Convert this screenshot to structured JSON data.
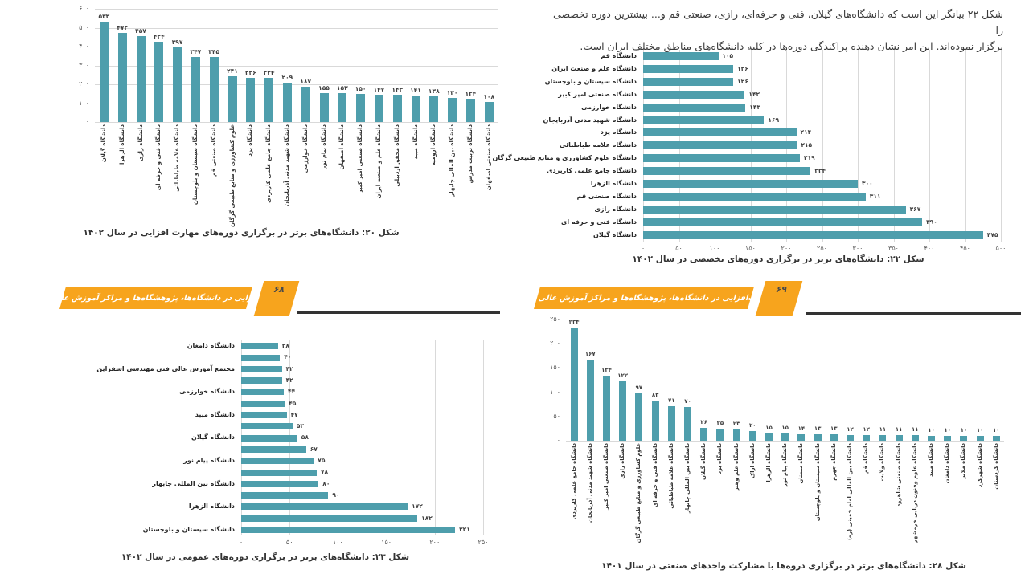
{
  "colors": {
    "bar": "#4E9EAC",
    "banner": "#F7A41D",
    "banner_shadow": "#333333",
    "gridline": "#d9d9d9"
  },
  "page_left": {
    "page_number": "۶۸",
    "banner_title": "مهارت‌افزایی در دانشگاه‌ها، پژوهشگاه‌ها و مراکز آموزش عالی کشور"
  },
  "page_right": {
    "page_number": "۶۹",
    "banner_title": "مهارت‌افزایی در دانشگاه‌ها، پژوهشگاه‌ها و مراکز آموزش عالی کشور",
    "paragraph_lines": [
      "شکل ۲۲ بیانگر این است که دانشگاه‌های گیلان، فنی و حرفه‌ای، رازی، صنعتی قم و... بیشترین دوره تخصصی را",
      "برگزار نموده‌اند. این امر نشان دهنده پراکندگی دوره‌ها در کلیه دانشگاه‌های مناطق مختلف ایران است."
    ]
  },
  "chart_data": [
    {
      "id": "fig20",
      "type": "bar",
      "orientation": "vertical",
      "title": "شکل ۲۰: دانشگاه‌های برتر در برگزاری دوره‌های مهارت افزایی در سال ۱۴۰۲",
      "categories": [
        "دانشگاه گیلان",
        "دانشگاه الزهرا",
        "دانشگاه رازی",
        "دانشگاه فنی و حرفه ای",
        "دانشگاه علامه طباطبائی",
        "دانشگاه سیستان و بلوچستان",
        "دانشگاه صنعتی قم",
        "علوم کشاورزی و منابع طبیعی گرگان",
        "دانشگاه یزد",
        "دانشگاه جامع علمی کاربردی",
        "دانشگاه شهید مدنی آذربایجان",
        "دانشگاه خوارزمی",
        "دانشگاه پیام نور",
        "دانشگاه اصفهان",
        "دانشگاه صنعتی امیر کبیر",
        "دانشگاه علم و صنعت ایران",
        "دانشگاه محقق اردبیلی",
        "دانشگاه میبد",
        "دانشگاه ارومیه",
        "دانشگاه بین المللی چابهار",
        "دانشگاه تربیت مدرس",
        "دانشگاه صنعتی اصفهان"
      ],
      "values": [
        533,
        472,
        457,
        424,
        397,
        347,
        345,
        241,
        236,
        234,
        209,
        187,
        155,
        153,
        150,
        147,
        143,
        141,
        138,
        130,
        124,
        108
      ],
      "ylim": [
        0,
        600
      ],
      "y_ticks": [
        0,
        100,
        200,
        300,
        400,
        500,
        600
      ],
      "grid": true,
      "bar_color": "#4E9EAC"
    },
    {
      "id": "fig22",
      "type": "bar",
      "orientation": "horizontal",
      "title": "شکل ۲۲: دانشگاه‌های برتر در برگزاری دوره‌های تخصصی در سال ۱۴۰۲",
      "categories": [
        "دانشگاه قم",
        "دانشگاه علم و صنعت ایران",
        "دانشگاه سیستان و بلوچستان",
        "دانشگاه صنعتی امیر کبیر",
        "دانشگاه خوارزمی",
        "دانشگاه شهید مدنی آذربایجان",
        "دانشگاه یزد",
        "دانشگاه علامه طباطبائی",
        "دانشگاه علوم کشاورزی و منابع طبیعی گرگان",
        "دانشگاه جامع علمی کاربردی",
        "دانشگاه الزهرا",
        "دانشگاه صنعتی قم",
        "دانشگاه رازی",
        "دانشگاه فنی و حرفه ای",
        "دانشگاه گیلان"
      ],
      "values": [
        105,
        126,
        126,
        142,
        143,
        169,
        214,
        215,
        219,
        234,
        300,
        311,
        367,
        390,
        475
      ],
      "xlim": [
        0,
        500
      ],
      "x_ticks": [
        0,
        50,
        100,
        150,
        200,
        250,
        300,
        350,
        400,
        450,
        500
      ],
      "grid": true,
      "bar_color": "#4E9EAC"
    },
    {
      "id": "fig23",
      "type": "bar",
      "orientation": "horizontal",
      "title": "شکل ۲۳: دانشگاه‌های برتر در برگزاری دوره‌های عمومی در سال ۱۴۰۲",
      "categories": [
        "دانشگاه دامغان",
        "",
        "مجتمع آموزش عالی فنی مهندسی اسفراین",
        "",
        "دانشگاه خوارزمی",
        "",
        "دانشگاه میبد",
        "",
        "دانشگاه گیلان",
        "",
        "دانشگاه پیام نور",
        "",
        "دانشگاه بین المللی چابهار",
        "",
        "دانشگاه الزهرا",
        "",
        "دانشگاه سیستان و بلوچستان"
      ],
      "values": [
        38,
        40,
        42,
        42,
        44,
        45,
        47,
        53,
        58,
        67,
        75,
        78,
        80,
        90,
        172,
        182,
        221
      ],
      "xlim": [
        0,
        250
      ],
      "x_ticks": [
        0,
        50,
        100,
        150,
        200,
        250
      ],
      "grid": true,
      "bar_color": "#4E9EAC"
    },
    {
      "id": "fig28",
      "type": "bar",
      "orientation": "vertical",
      "title": "شکل ۲۸: دانشگاه‌های برتر در برگزاری دروه‌ها با مشارکت واحدهای صنعتی در سال ۱۴۰۱",
      "categories": [
        "دانشگاه جامع علمی کاربردی",
        "دانشگاه شهید مدنی آذربایجان",
        "دانشگاه صنعتی امیر کبیر",
        "دانشگاه رازی",
        "علوم کشاورزی و منابع طبیعی گرگان",
        "دانشگاه فنی و حرفه ای",
        "دانشگاه علامه طباطبائی",
        "دانشگاه بین المللی چابهار",
        "دانشگاه گیلان",
        "دانشگاه یزد",
        "دانشگاه علم وهنر",
        "دانشگاه اراک",
        "دانشگاه الزهرا",
        "دانشگاه پیام نور",
        "دانشگاه سمنان",
        "دانشگاه سیستان و بلوچستان",
        "دانشگاه جهرم",
        "دانشگاه بین المللی امام خمینی (ره)",
        "دانشگاه قم",
        "دانشگاه ولایت",
        "دانشگاه صنعتی شاهرود",
        "دانشگاه علوم وفنون دریایی خرمشهر",
        "دانشگاه میبد",
        "دانشگاه دامغان",
        "دانشگاه ملایر",
        "دانشگاه شهرکرد",
        "دانشگاه کردستان"
      ],
      "values": [
        234,
        167,
        134,
        122,
        97,
        83,
        71,
        70,
        26,
        25,
        23,
        20,
        15,
        15,
        14,
        13,
        13,
        12,
        12,
        11,
        11,
        11,
        10,
        10,
        10,
        10,
        10
      ],
      "ylim": [
        0,
        250
      ],
      "y_ticks": [
        0,
        50,
        100,
        150,
        200,
        250
      ],
      "grid": true,
      "bar_color": "#4E9EAC"
    }
  ]
}
